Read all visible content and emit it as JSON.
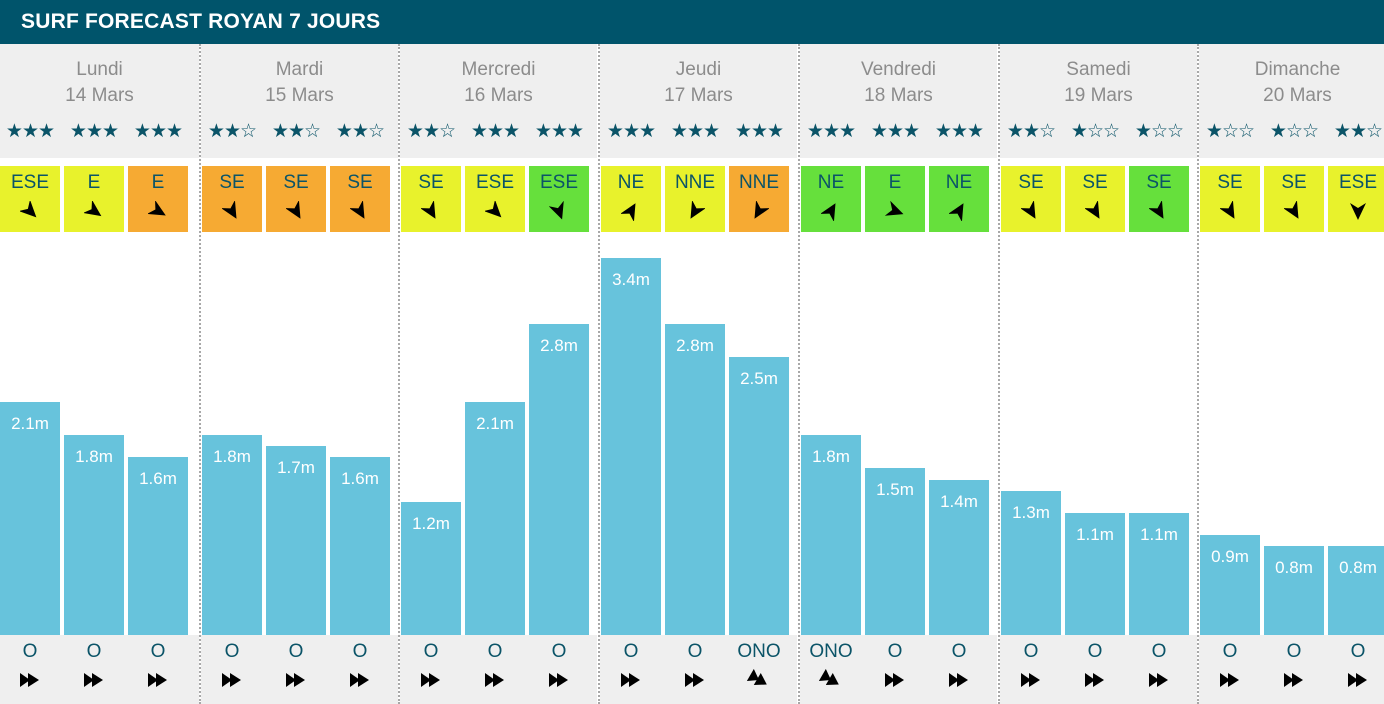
{
  "title": "SURF FORECAST ROYAN 7 JOURS",
  "chart_data": {
    "type": "bar",
    "ylabel": "",
    "ylim": [
      0,
      3.8
    ],
    "unit": "m",
    "days": [
      {
        "day": "Lundi",
        "date": "14 Mars",
        "slots": [
          {
            "stars": 3,
            "wind_dir": "ESE",
            "wind_color": "#e8f22c",
            "wind_rot": 135,
            "wave": 2.1,
            "wave_label": "2.1m",
            "swell_dir": "O",
            "swell_rot": 90
          },
          {
            "stars": 3,
            "wind_dir": "E",
            "wind_color": "#e8f22c",
            "wind_rot": 125,
            "wave": 1.8,
            "wave_label": "1.8m",
            "swell_dir": "O",
            "swell_rot": 90
          },
          {
            "stars": 3,
            "wind_dir": "E",
            "wind_color": "#f6aa33",
            "wind_rot": 120,
            "wave": 1.6,
            "wave_label": "1.6m",
            "swell_dir": "O",
            "swell_rot": 90
          }
        ]
      },
      {
        "day": "Mardi",
        "date": "15 Mars",
        "slots": [
          {
            "stars": 2,
            "wind_dir": "SE",
            "wind_color": "#f6aa33",
            "wind_rot": 150,
            "wave": 1.8,
            "wave_label": "1.8m",
            "swell_dir": "O",
            "swell_rot": 90
          },
          {
            "stars": 2,
            "wind_dir": "SE",
            "wind_color": "#f6aa33",
            "wind_rot": 150,
            "wave": 1.7,
            "wave_label": "1.7m",
            "swell_dir": "O",
            "swell_rot": 90
          },
          {
            "stars": 2,
            "wind_dir": "SE",
            "wind_color": "#f6aa33",
            "wind_rot": 150,
            "wave": 1.6,
            "wave_label": "1.6m",
            "swell_dir": "O",
            "swell_rot": 90
          }
        ]
      },
      {
        "day": "Mercredi",
        "date": "16 Mars",
        "slots": [
          {
            "stars": 2,
            "wind_dir": "SE",
            "wind_color": "#e8f22c",
            "wind_rot": 150,
            "wave": 1.2,
            "wave_label": "1.2m",
            "swell_dir": "O",
            "swell_rot": 90
          },
          {
            "stars": 3,
            "wind_dir": "ESE",
            "wind_color": "#e8f22c",
            "wind_rot": 135,
            "wave": 2.1,
            "wave_label": "2.1m",
            "swell_dir": "O",
            "swell_rot": 90
          },
          {
            "stars": 3,
            "wind_dir": "ESE",
            "wind_color": "#66e03c",
            "wind_rot": 160,
            "wave": 2.8,
            "wave_label": "2.8m",
            "swell_dir": "O",
            "swell_rot": 90
          }
        ]
      },
      {
        "day": "Jeudi",
        "date": "17 Mars",
        "slots": [
          {
            "stars": 3,
            "wind_dir": "NE",
            "wind_color": "#e8f22c",
            "wind_rot": 30,
            "wave": 3.4,
            "wave_label": "3.4m",
            "swell_dir": "O",
            "swell_rot": 90
          },
          {
            "stars": 3,
            "wind_dir": "NNE",
            "wind_color": "#e8f22c",
            "wind_rot": 210,
            "wave": 2.8,
            "wave_label": "2.8m",
            "swell_dir": "O",
            "swell_rot": 90
          },
          {
            "stars": 3,
            "wind_dir": "NNE",
            "wind_color": "#f6aa33",
            "wind_rot": 210,
            "wave": 2.5,
            "wave_label": "2.5m",
            "swell_dir": "ONO",
            "swell_rot": 120
          }
        ]
      },
      {
        "day": "Vendredi",
        "date": "18 Mars",
        "slots": [
          {
            "stars": 3,
            "wind_dir": "NE",
            "wind_color": "#66e03c",
            "wind_rot": 30,
            "wave": 1.8,
            "wave_label": "1.8m",
            "swell_dir": "ONO",
            "swell_rot": 120
          },
          {
            "stars": 3,
            "wind_dir": "E",
            "wind_color": "#66e03c",
            "wind_rot": 110,
            "wave": 1.5,
            "wave_label": "1.5m",
            "swell_dir": "O",
            "swell_rot": 90
          },
          {
            "stars": 3,
            "wind_dir": "NE",
            "wind_color": "#66e03c",
            "wind_rot": 30,
            "wave": 1.4,
            "wave_label": "1.4m",
            "swell_dir": "O",
            "swell_rot": 90
          }
        ]
      },
      {
        "day": "Samedi",
        "date": "19 Mars",
        "slots": [
          {
            "stars": 2,
            "wind_dir": "SE",
            "wind_color": "#e8f22c",
            "wind_rot": 150,
            "wave": 1.3,
            "wave_label": "1.3m",
            "swell_dir": "O",
            "swell_rot": 90
          },
          {
            "stars": 1,
            "wind_dir": "SE",
            "wind_color": "#e8f22c",
            "wind_rot": 150,
            "wave": 1.1,
            "wave_label": "1.1m",
            "swell_dir": "O",
            "swell_rot": 90
          },
          {
            "stars": 1,
            "wind_dir": "SE",
            "wind_color": "#66e03c",
            "wind_rot": 150,
            "wave": 1.1,
            "wave_label": "1.1m",
            "swell_dir": "O",
            "swell_rot": 90
          }
        ]
      },
      {
        "day": "Dimanche",
        "date": "20 Mars",
        "slots": [
          {
            "stars": 1,
            "wind_dir": "SE",
            "wind_color": "#e8f22c",
            "wind_rot": 150,
            "wave": 0.9,
            "wave_label": "0.9m",
            "swell_dir": "O",
            "swell_rot": 90
          },
          {
            "stars": 1,
            "wind_dir": "SE",
            "wind_color": "#e8f22c",
            "wind_rot": 150,
            "wave": 0.8,
            "wave_label": "0.8m",
            "swell_dir": "O",
            "swell_rot": 90
          },
          {
            "stars": 2,
            "wind_dir": "ESE",
            "wind_color": "#e8f22c",
            "wind_rot": 180,
            "wave": 0.8,
            "wave_label": "0.8m",
            "swell_dir": "O",
            "swell_rot": 90
          }
        ]
      }
    ]
  },
  "colors": {
    "header": "#00546b",
    "bar": "#67c3dc",
    "text_dark": "#0b5468",
    "band": "#efefef"
  }
}
